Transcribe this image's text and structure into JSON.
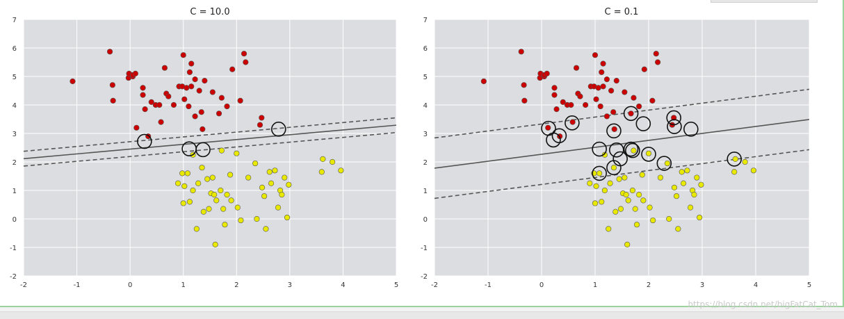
{
  "chart_data": [
    {
      "type": "scatter",
      "title": "C = 10.0",
      "xlim": [
        -2,
        5
      ],
      "ylim": [
        -2,
        7
      ],
      "xticks": [
        -2,
        -1,
        0,
        1,
        2,
        3,
        4,
        5
      ],
      "yticks": [
        -2,
        -1,
        0,
        1,
        2,
        3,
        4,
        5,
        6,
        7
      ],
      "grid": true,
      "series": [
        {
          "color": "#cc0000",
          "points": [
            [
              -1.08,
              4.83
            ],
            [
              -0.38,
              5.87
            ],
            [
              -0.33,
              4.7
            ],
            [
              -0.32,
              4.15
            ],
            [
              -0.03,
              4.95
            ],
            [
              -0.02,
              5.1
            ],
            [
              0.05,
              5.0
            ],
            [
              0.05,
              5.05
            ],
            [
              0.1,
              5.1
            ],
            [
              0.12,
              3.2
            ],
            [
              0.24,
              4.35
            ],
            [
              0.24,
              4.6
            ],
            [
              0.28,
              3.85
            ],
            [
              0.34,
              2.9
            ],
            [
              0.4,
              4.1
            ],
            [
              0.48,
              4.0
            ],
            [
              0.55,
              4.0
            ],
            [
              0.58,
              3.4
            ],
            [
              0.65,
              5.3
            ],
            [
              0.68,
              4.4
            ],
            [
              0.72,
              4.3
            ],
            [
              0.82,
              4.0
            ],
            [
              0.92,
              4.65
            ],
            [
              0.98,
              4.65
            ],
            [
              1.0,
              5.75
            ],
            [
              1.02,
              4.2
            ],
            [
              1.06,
              4.6
            ],
            [
              1.1,
              3.95
            ],
            [
              1.12,
              5.15
            ],
            [
              1.15,
              4.65
            ],
            [
              1.15,
              5.45
            ],
            [
              1.22,
              4.9
            ],
            [
              1.22,
              3.6
            ],
            [
              1.3,
              4.5
            ],
            [
              1.34,
              3.75
            ],
            [
              1.36,
              3.15
            ],
            [
              1.4,
              4.85
            ],
            [
              1.55,
              4.45
            ],
            [
              1.67,
              3.7
            ],
            [
              1.72,
              4.25
            ],
            [
              1.82,
              3.95
            ],
            [
              1.92,
              5.25
            ],
            [
              2.07,
              4.15
            ],
            [
              2.14,
              5.8
            ],
            [
              2.17,
              5.5
            ],
            [
              2.44,
              3.3
            ],
            [
              2.47,
              3.55
            ]
          ]
        },
        {
          "color": "#e8e800",
          "points": [
            [
              0.9,
              1.25
            ],
            [
              0.98,
              1.6
            ],
            [
              1.0,
              0.55
            ],
            [
              1.02,
              1.15
            ],
            [
              1.08,
              1.6
            ],
            [
              1.12,
              0.6
            ],
            [
              1.18,
              1.0
            ],
            [
              1.25,
              -0.35
            ],
            [
              1.28,
              1.25
            ],
            [
              1.35,
              1.8
            ],
            [
              1.38,
              0.25
            ],
            [
              1.45,
              1.4
            ],
            [
              1.48,
              0.35
            ],
            [
              1.52,
              0.9
            ],
            [
              1.55,
              1.45
            ],
            [
              1.58,
              0.85
            ],
            [
              1.6,
              -0.9
            ],
            [
              1.62,
              0.65
            ],
            [
              1.7,
              1.0
            ],
            [
              1.75,
              0.35
            ],
            [
              1.78,
              -0.2
            ],
            [
              1.82,
              0.85
            ],
            [
              1.88,
              1.55
            ],
            [
              1.9,
              0.65
            ],
            [
              2.02,
              0.4
            ],
            [
              2.08,
              -0.05
            ],
            [
              2.22,
              1.45
            ],
            [
              2.35,
              1.95
            ],
            [
              2.38,
              0.0
            ],
            [
              2.48,
              1.1
            ],
            [
              2.52,
              0.8
            ],
            [
              2.55,
              -0.35
            ],
            [
              2.62,
              1.65
            ],
            [
              2.65,
              1.25
            ],
            [
              2.72,
              1.7
            ],
            [
              2.78,
              0.4
            ],
            [
              2.82,
              1.0
            ],
            [
              2.85,
              0.85
            ],
            [
              2.9,
              1.45
            ],
            [
              2.95,
              0.05
            ],
            [
              2.98,
              1.2
            ],
            [
              3.6,
              1.65
            ],
            [
              3.62,
              2.1
            ],
            [
              3.8,
              2.0
            ],
            [
              3.96,
              1.7
            ],
            [
              1.18,
              2.25
            ],
            [
              1.72,
              2.4
            ],
            [
              2.0,
              2.3
            ]
          ]
        }
      ],
      "support_vectors": [
        [
          0.27,
          2.72
        ],
        [
          1.11,
          2.46
        ],
        [
          1.37,
          2.43
        ],
        [
          2.79,
          3.15
        ]
      ],
      "decision_boundary": {
        "slope": 0.168,
        "intercept": 2.45
      },
      "margins": [
        {
          "slope": 0.168,
          "intercept": 2.71
        },
        {
          "slope": 0.168,
          "intercept": 2.19
        }
      ]
    },
    {
      "type": "scatter",
      "title": "C = 0.1",
      "xlim": [
        -2,
        5
      ],
      "ylim": [
        -2,
        7
      ],
      "xticks": [
        -2,
        -1,
        0,
        1,
        2,
        3,
        4,
        5
      ],
      "yticks": [
        -2,
        -1,
        0,
        1,
        2,
        3,
        4,
        5,
        6,
        7
      ],
      "grid": true,
      "series": [
        {
          "color": "#cc0000",
          "points": [
            [
              -1.08,
              4.83
            ],
            [
              -0.38,
              5.87
            ],
            [
              -0.33,
              4.7
            ],
            [
              -0.32,
              4.15
            ],
            [
              -0.03,
              4.95
            ],
            [
              -0.02,
              5.1
            ],
            [
              0.05,
              5.0
            ],
            [
              0.05,
              5.05
            ],
            [
              0.1,
              5.1
            ],
            [
              0.12,
              3.2
            ],
            [
              0.24,
              4.35
            ],
            [
              0.24,
              4.6
            ],
            [
              0.28,
              3.85
            ],
            [
              0.34,
              2.9
            ],
            [
              0.4,
              4.1
            ],
            [
              0.48,
              4.0
            ],
            [
              0.55,
              4.0
            ],
            [
              0.58,
              3.4
            ],
            [
              0.65,
              5.3
            ],
            [
              0.68,
              4.4
            ],
            [
              0.72,
              4.3
            ],
            [
              0.82,
              4.0
            ],
            [
              0.92,
              4.65
            ],
            [
              0.98,
              4.65
            ],
            [
              1.0,
              5.75
            ],
            [
              1.02,
              4.2
            ],
            [
              1.06,
              4.6
            ],
            [
              1.1,
              3.95
            ],
            [
              1.12,
              5.15
            ],
            [
              1.15,
              4.65
            ],
            [
              1.15,
              5.45
            ],
            [
              1.22,
              4.9
            ],
            [
              1.22,
              3.6
            ],
            [
              1.3,
              4.5
            ],
            [
              1.34,
              3.75
            ],
            [
              1.36,
              3.15
            ],
            [
              1.4,
              4.85
            ],
            [
              1.55,
              4.45
            ],
            [
              1.67,
              3.7
            ],
            [
              1.72,
              4.25
            ],
            [
              1.82,
              3.95
            ],
            [
              1.92,
              5.25
            ],
            [
              2.07,
              4.15
            ],
            [
              2.14,
              5.8
            ],
            [
              2.17,
              5.5
            ],
            [
              2.44,
              3.3
            ],
            [
              2.47,
              3.55
            ]
          ]
        },
        {
          "color": "#e8e800",
          "points": [
            [
              0.9,
              1.25
            ],
            [
              0.98,
              1.6
            ],
            [
              1.0,
              0.55
            ],
            [
              1.02,
              1.15
            ],
            [
              1.08,
              1.6
            ],
            [
              1.12,
              0.6
            ],
            [
              1.18,
              1.0
            ],
            [
              1.25,
              -0.35
            ],
            [
              1.28,
              1.25
            ],
            [
              1.35,
              1.8
            ],
            [
              1.38,
              0.25
            ],
            [
              1.45,
              1.4
            ],
            [
              1.48,
              0.35
            ],
            [
              1.52,
              0.9
            ],
            [
              1.55,
              1.45
            ],
            [
              1.58,
              0.85
            ],
            [
              1.6,
              -0.9
            ],
            [
              1.62,
              0.65
            ],
            [
              1.7,
              1.0
            ],
            [
              1.75,
              0.35
            ],
            [
              1.78,
              -0.2
            ],
            [
              1.82,
              0.85
            ],
            [
              1.88,
              1.55
            ],
            [
              1.9,
              0.65
            ],
            [
              2.02,
              0.4
            ],
            [
              2.08,
              -0.05
            ],
            [
              2.22,
              1.45
            ],
            [
              2.35,
              1.95
            ],
            [
              2.38,
              0.0
            ],
            [
              2.48,
              1.1
            ],
            [
              2.52,
              0.8
            ],
            [
              2.55,
              -0.35
            ],
            [
              2.62,
              1.65
            ],
            [
              2.65,
              1.25
            ],
            [
              2.72,
              1.7
            ],
            [
              2.78,
              0.4
            ],
            [
              2.82,
              1.0
            ],
            [
              2.85,
              0.85
            ],
            [
              2.9,
              1.45
            ],
            [
              2.95,
              0.05
            ],
            [
              2.98,
              1.2
            ],
            [
              3.6,
              1.65
            ],
            [
              3.62,
              2.1
            ],
            [
              3.8,
              2.0
            ],
            [
              3.96,
              1.7
            ],
            [
              1.18,
              2.25
            ],
            [
              1.72,
              2.4
            ],
            [
              2.0,
              2.3
            ]
          ]
        }
      ],
      "support_vectors": [
        [
          0.13,
          3.18
        ],
        [
          0.22,
          2.77
        ],
        [
          0.33,
          2.92
        ],
        [
          0.57,
          3.37
        ],
        [
          1.08,
          2.45
        ],
        [
          1.08,
          1.6
        ],
        [
          1.35,
          1.8
        ],
        [
          1.35,
          3.09
        ],
        [
          1.4,
          2.42
        ],
        [
          1.47,
          2.11
        ],
        [
          1.67,
          2.45
        ],
        [
          1.67,
          3.7
        ],
        [
          1.7,
          2.4
        ],
        [
          1.9,
          3.34
        ],
        [
          2.0,
          2.27
        ],
        [
          2.29,
          1.95
        ],
        [
          2.47,
          3.55
        ],
        [
          2.48,
          3.24
        ],
        [
          2.79,
          3.15
        ],
        [
          3.6,
          2.1
        ]
      ],
      "decision_boundary": {
        "slope": 0.244,
        "intercept": 2.27
      },
      "margins": [
        {
          "slope": 0.244,
          "intercept": 3.33
        },
        {
          "slope": 0.244,
          "intercept": 1.21
        }
      ]
    }
  ],
  "watermark": "https://blog.csdn.net/bigFatCat_Tom"
}
